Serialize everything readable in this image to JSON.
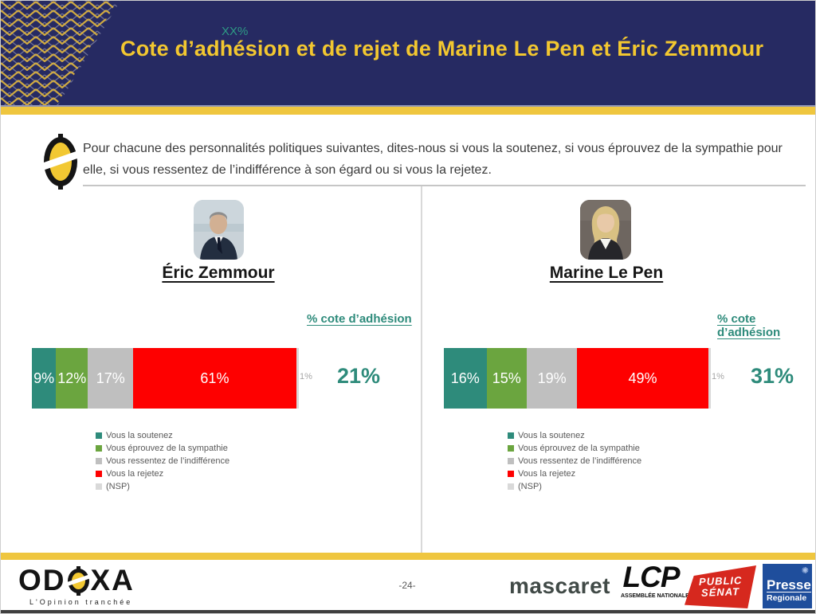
{
  "header": {
    "placeholder_note": "XX%",
    "title": "Cote d’adhésion et de rejet de Marine Le Pen et Éric Zemmour"
  },
  "question": {
    "text": "Pour chacune des personnalités politiques suivantes, dites-nous si vous la soutenez, si vous éprouvez de la sympathie pour elle, si vous ressentez de l’indifférence à son égard ou si vous la rejetez."
  },
  "chart_data": [
    {
      "type": "bar",
      "orientation": "horizontal-stacked",
      "person": "Éric Zemmour",
      "categories": [
        "Vous la soutenez",
        "Vous éprouvez de la sympathie",
        "Vous ressentez de l’indifférence",
        "Vous la rejetez",
        "(NSP)"
      ],
      "values": [
        9,
        12,
        17,
        61,
        1
      ],
      "labels": [
        "9%",
        "12%",
        "17%",
        "61%",
        "1%"
      ],
      "adhesion_label": "% cote d’adhésion",
      "adhesion_value": "21%"
    },
    {
      "type": "bar",
      "orientation": "horizontal-stacked",
      "person": "Marine Le Pen",
      "categories": [
        "Vous la soutenez",
        "Vous éprouvez de la sympathie",
        "Vous ressentez de l’indifférence",
        "Vous la rejetez",
        "(NSP)"
      ],
      "values": [
        16,
        15,
        19,
        49,
        1
      ],
      "labels": [
        "16%",
        "15%",
        "19%",
        "49%",
        "1%"
      ],
      "adhesion_label": "% cote d’adhésion",
      "adhesion_value": "31%"
    }
  ],
  "colors": {
    "segment_colors": [
      "#2E8B7B",
      "#6BA53F",
      "#BFBFBF",
      "#FE0000",
      "#D9D9D9"
    ],
    "accent_teal": "#2E8B7B",
    "navy": "#262A62",
    "gold": "#EFC63F",
    "public_senat_red": "#D6281E",
    "presse_blue": "#1F4E9C"
  },
  "footer": {
    "page_number": "-24-",
    "odoxa_part1": "OD",
    "odoxa_part2": "XA",
    "odoxa_tagline": "L'Opinion tranchée",
    "logo_mascaret": "mascaret",
    "logo_lcp": "LCP",
    "logo_lcp_sub": "ASSEMBLÉE NATIONALE",
    "logo_public_senat_line1": "PUBLIC",
    "logo_public_senat_line2": "SÉNAT",
    "logo_presse_line1": "Presse",
    "logo_presse_line2": "Regionale"
  }
}
